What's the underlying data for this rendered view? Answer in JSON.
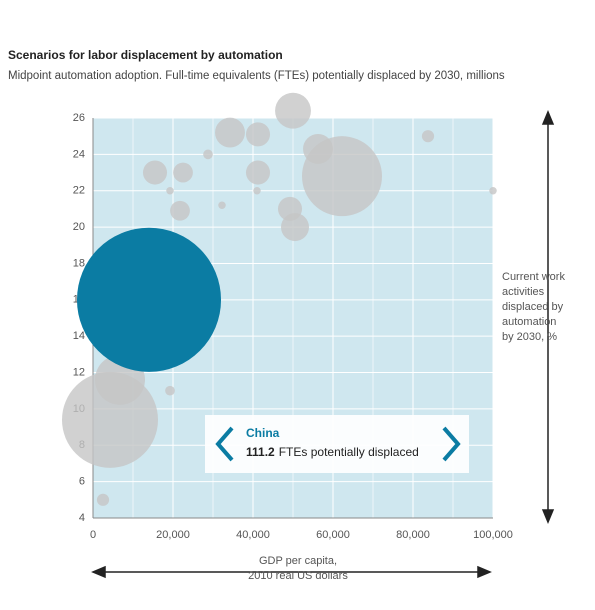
{
  "chart_data": {
    "type": "bubble",
    "title": "Scenarios for labor displacement by automation",
    "subtitle": "Midpoint automation adoption. Full-time equivalents (FTEs) potentially displaced by 2030, millions",
    "xlabel": [
      "GDP per capita,",
      "2010 real US dollars"
    ],
    "ylabel": [
      "Current work",
      "activities",
      "displaced by",
      "automation",
      "by 2030, %"
    ],
    "xlim": [
      0,
      100000
    ],
    "ylim": [
      4,
      26
    ],
    "xticks": [
      0,
      {
        "value": 20000,
        "label": "20,000"
      },
      {
        "value": 40000,
        "label": "40,000"
      },
      {
        "value": 60000,
        "label": "60,000"
      },
      {
        "value": 80000,
        "label": "80,000"
      },
      {
        "value": 100000,
        "label": "100,000"
      }
    ],
    "yticks": [
      4,
      6,
      8,
      10,
      12,
      14,
      16,
      18,
      20,
      22,
      24,
      26
    ],
    "grid": true,
    "series": [
      {
        "color": "#c6c6c6",
        "x": [
          4250,
          6750,
          2500,
          19250,
          15500,
          22500,
          21750,
          19250,
          28750,
          32250,
          34250,
          41250,
          41250,
          41000,
          50000,
          56250,
          62250,
          49250,
          50500,
          83750,
          100000
        ],
        "values": [
          9.4,
          11.6,
          5.0,
          11.0,
          23.0,
          23.0,
          20.9,
          22.0,
          24.0,
          21.2,
          25.2,
          25.1,
          23.0,
          22.0,
          26.4,
          24.3,
          22.8,
          21.0,
          20.0,
          25.0,
          22.0
        ],
        "sizes": [
          49.4,
          13.4,
          0.8,
          0.5,
          3.1,
          2.1,
          2.1,
          0.3,
          0.5,
          0.3,
          4.8,
          3.1,
          3.1,
          0.3,
          6.9,
          4.8,
          34.3,
          3.1,
          4.2,
          0.8,
          0.3
        ]
      },
      {
        "name": "China",
        "color": "#0b7ca3",
        "x": [
          14000
        ],
        "values": [
          16
        ],
        "sizes": [
          111.2
        ]
      }
    ],
    "annotation": "FTEs potentially displaced"
  }
}
